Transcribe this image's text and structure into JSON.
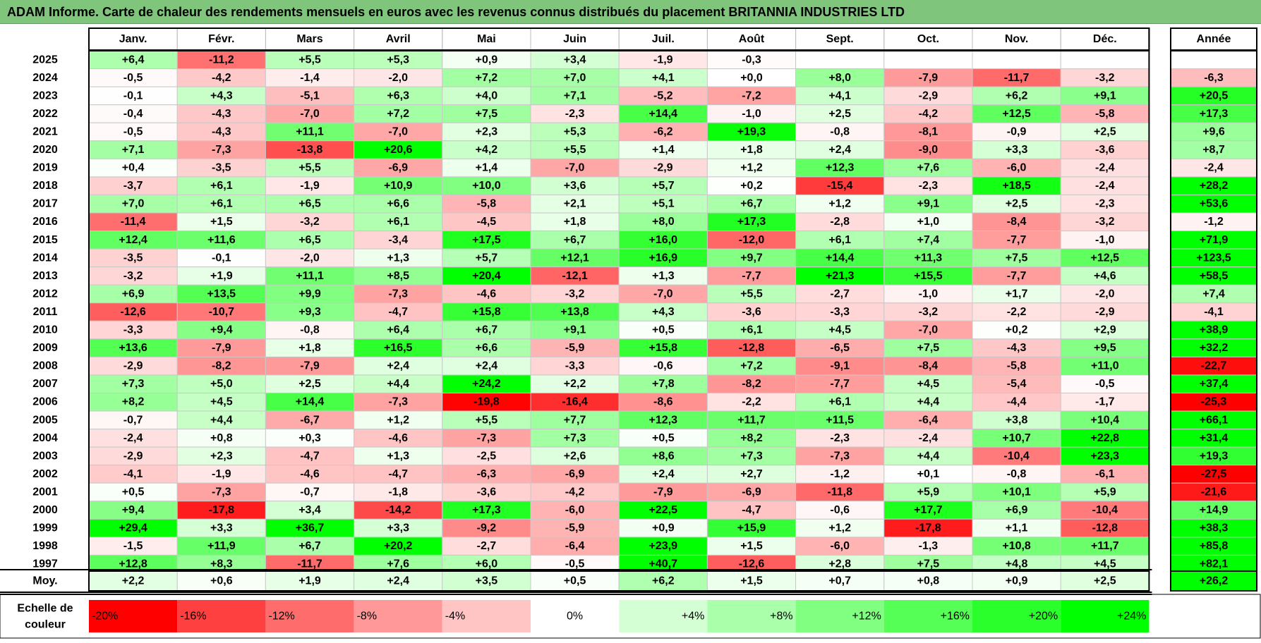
{
  "title": "ADAM Informe. Carte de chaleur des rendements mensuels en euros avec les revenus connus distribués du placement BRITANNIA INDUSTRIES LTD",
  "chart_data": {
    "type": "heatmap",
    "title": "ADAM Informe. Carte de chaleur des rendements mensuels en euros avec les revenus connus distribués du placement BRITANNIA INDUSTRIES LTD",
    "columns": [
      "Janv.",
      "Févr.",
      "Mars",
      "Avril",
      "Mai",
      "Juin",
      "Juil.",
      "Août",
      "Sept.",
      "Oct.",
      "Nov.",
      "Déc."
    ],
    "year_column_label": "Année",
    "rows": [
      {
        "year": "2025",
        "months": [
          "+6,4",
          "-11,2",
          "+5,5",
          "+5,3",
          "+0,9",
          "+3,4",
          "-1,9",
          "-0,3",
          "",
          "",
          "",
          ""
        ],
        "annual": ""
      },
      {
        "year": "2024",
        "months": [
          "-0,5",
          "-4,2",
          "-1,4",
          "-2,0",
          "+7,2",
          "+7,0",
          "+4,1",
          "+0,0",
          "+8,0",
          "-7,9",
          "-11,7",
          "-3,2"
        ],
        "annual": "-6,3"
      },
      {
        "year": "2023",
        "months": [
          "-0,1",
          "+4,3",
          "-5,1",
          "+6,3",
          "+4,0",
          "+7,1",
          "-5,2",
          "-7,2",
          "+4,1",
          "-2,9",
          "+6,2",
          "+9,1"
        ],
        "annual": "+20,5"
      },
      {
        "year": "2022",
        "months": [
          "-0,4",
          "-4,3",
          "-7,0",
          "+7,2",
          "+7,5",
          "-2,3",
          "+14,4",
          "-1,0",
          "+2,5",
          "-4,2",
          "+12,5",
          "-5,8"
        ],
        "annual": "+17,3"
      },
      {
        "year": "2021",
        "months": [
          "-0,5",
          "-4,3",
          "+11,1",
          "-7,0",
          "+2,3",
          "+5,3",
          "-6,2",
          "+19,3",
          "-0,8",
          "-8,1",
          "-0,9",
          "+2,5"
        ],
        "annual": "+9,6"
      },
      {
        "year": "2020",
        "months": [
          "+7,1",
          "-7,3",
          "-13,8",
          "+20,6",
          "+4,2",
          "+5,5",
          "+1,4",
          "+1,8",
          "+2,4",
          "-9,0",
          "+3,3",
          "-3,6"
        ],
        "annual": "+8,7"
      },
      {
        "year": "2019",
        "months": [
          "+0,4",
          "-3,5",
          "+5,5",
          "-6,9",
          "+1,4",
          "-7,0",
          "-2,9",
          "+1,2",
          "+12,3",
          "+7,6",
          "-6,0",
          "-2,4"
        ],
        "annual": "-2,4"
      },
      {
        "year": "2018",
        "months": [
          "-3,7",
          "+6,1",
          "-1,9",
          "+10,9",
          "+10,0",
          "+3,6",
          "+5,7",
          "+0,2",
          "-15,4",
          "-2,3",
          "+18,5",
          "-2,4"
        ],
        "annual": "+28,2"
      },
      {
        "year": "2017",
        "months": [
          "+7,0",
          "+6,1",
          "+6,5",
          "+6,6",
          "-5,8",
          "+2,1",
          "+5,1",
          "+6,7",
          "+1,2",
          "+9,1",
          "+2,5",
          "-2,3"
        ],
        "annual": "+53,6"
      },
      {
        "year": "2016",
        "months": [
          "-11,4",
          "+1,5",
          "-3,2",
          "+6,1",
          "-4,5",
          "+1,8",
          "+8,0",
          "+17,3",
          "-2,8",
          "+1,0",
          "-8,4",
          "-3,2"
        ],
        "annual": "-1,2"
      },
      {
        "year": "2015",
        "months": [
          "+12,4",
          "+11,6",
          "+6,5",
          "-3,4",
          "+17,5",
          "+6,7",
          "+16,0",
          "-12,0",
          "+6,1",
          "+7,4",
          "-7,7",
          "-1,0"
        ],
        "annual": "+71,9"
      },
      {
        "year": "2014",
        "months": [
          "-3,5",
          "-0,1",
          "-2,0",
          "+1,3",
          "+5,7",
          "+12,1",
          "+16,9",
          "+9,7",
          "+14,4",
          "+11,3",
          "+7,5",
          "+12,5"
        ],
        "annual": "+123,5"
      },
      {
        "year": "2013",
        "months": [
          "-3,2",
          "+1,9",
          "+11,1",
          "+8,5",
          "+20,4",
          "-12,1",
          "+1,3",
          "-7,7",
          "+21,3",
          "+15,5",
          "-7,7",
          "+4,6"
        ],
        "annual": "+58,5"
      },
      {
        "year": "2012",
        "months": [
          "+6,9",
          "+13,5",
          "+9,9",
          "-7,3",
          "-4,6",
          "-3,2",
          "-7,0",
          "+5,5",
          "-2,7",
          "-1,0",
          "+1,7",
          "-2,0"
        ],
        "annual": "+7,4"
      },
      {
        "year": "2011",
        "months": [
          "-12,6",
          "-10,7",
          "+9,3",
          "-4,7",
          "+15,8",
          "+13,8",
          "+4,3",
          "-3,6",
          "-3,3",
          "-3,2",
          "-2,2",
          "-2,9"
        ],
        "annual": "-4,1"
      },
      {
        "year": "2010",
        "months": [
          "-3,3",
          "+9,4",
          "-0,8",
          "+6,4",
          "+6,7",
          "+9,1",
          "+0,5",
          "+6,1",
          "+4,5",
          "-7,0",
          "+0,2",
          "+2,9"
        ],
        "annual": "+38,9"
      },
      {
        "year": "2009",
        "months": [
          "+13,6",
          "-7,9",
          "+1,8",
          "+16,5",
          "+6,6",
          "-5,9",
          "+15,8",
          "-12,8",
          "-6,5",
          "+7,5",
          "-4,3",
          "+9,5"
        ],
        "annual": "+32,2"
      },
      {
        "year": "2008",
        "months": [
          "-2,9",
          "-8,2",
          "-7,9",
          "+2,4",
          "+2,4",
          "-3,3",
          "-0,6",
          "+7,2",
          "-9,1",
          "-8,4",
          "-5,8",
          "+11,0"
        ],
        "annual": "-22,7"
      },
      {
        "year": "2007",
        "months": [
          "+7,3",
          "+5,0",
          "+2,5",
          "+4,4",
          "+24,2",
          "+2,2",
          "+7,8",
          "-8,2",
          "-7,7",
          "+4,5",
          "-5,4",
          "-0,5"
        ],
        "annual": "+37,4"
      },
      {
        "year": "2006",
        "months": [
          "+8,2",
          "+4,5",
          "+14,4",
          "-7,3",
          "-19,8",
          "-16,4",
          "-8,6",
          "-2,2",
          "+6,1",
          "+4,4",
          "-4,4",
          "-1,7"
        ],
        "annual": "-25,3"
      },
      {
        "year": "2005",
        "months": [
          "-0,7",
          "+4,4",
          "-6,7",
          "+1,2",
          "+5,5",
          "+7,7",
          "+12,3",
          "+11,7",
          "+11,5",
          "-6,4",
          "+3,8",
          "+10,4"
        ],
        "annual": "+66,1"
      },
      {
        "year": "2004",
        "months": [
          "-2,4",
          "+0,8",
          "+0,3",
          "-4,6",
          "-7,3",
          "+7,3",
          "+0,5",
          "+8,2",
          "-2,3",
          "-2,4",
          "+10,7",
          "+22,8"
        ],
        "annual": "+31,4"
      },
      {
        "year": "2003",
        "months": [
          "-2,9",
          "+2,3",
          "-4,7",
          "+1,3",
          "-2,5",
          "+2,6",
          "+8,6",
          "+7,3",
          "-7,3",
          "+4,4",
          "-10,4",
          "+23,3"
        ],
        "annual": "+19,3"
      },
      {
        "year": "2002",
        "months": [
          "-4,1",
          "-1,9",
          "-4,6",
          "-4,7",
          "-6,3",
          "-6,9",
          "+2,4",
          "+2,7",
          "-1,2",
          "+0,1",
          "-0,8",
          "-6,1"
        ],
        "annual": "-27,5"
      },
      {
        "year": "2001",
        "months": [
          "+0,5",
          "-7,3",
          "-0,7",
          "-1,8",
          "-3,6",
          "-4,2",
          "-7,9",
          "-6,9",
          "-11,8",
          "+5,9",
          "+10,1",
          "+5,9"
        ],
        "annual": "-21,6"
      },
      {
        "year": "2000",
        "months": [
          "+9,4",
          "-17,8",
          "+3,4",
          "-14,2",
          "+17,3",
          "-6,0",
          "+22,5",
          "-4,7",
          "-0,6",
          "+17,7",
          "+6,9",
          "-10,4"
        ],
        "annual": "+14,9"
      },
      {
        "year": "1999",
        "months": [
          "+29,4",
          "+3,3",
          "+36,7",
          "+3,3",
          "-9,2",
          "-5,9",
          "+0,9",
          "+15,9",
          "+1,2",
          "-17,8",
          "+1,1",
          "-12,8"
        ],
        "annual": "+38,3"
      },
      {
        "year": "1998",
        "months": [
          "-1,5",
          "+11,9",
          "+6,7",
          "+20,2",
          "-2,7",
          "-6,4",
          "+23,9",
          "+1,5",
          "-6,0",
          "-1,3",
          "+10,8",
          "+11,7"
        ],
        "annual": "+85,8"
      },
      {
        "year": "1997",
        "months": [
          "+12,8",
          "+8,3",
          "-11,7",
          "+7,6",
          "+6,0",
          "-0,5",
          "+40,7",
          "-12,6",
          "+2,8",
          "+7,5",
          "+4,8",
          "+4,5"
        ],
        "annual": "+82,1"
      }
    ],
    "average": {
      "label": "Moy.",
      "months": [
        "+2,2",
        "+0,6",
        "+1,9",
        "+2,4",
        "+3,5",
        "+0,5",
        "+6,2",
        "+1,5",
        "+0,7",
        "+0,8",
        "+0,9",
        "+2,5"
      ],
      "annual": "+26,2"
    },
    "scale": {
      "label_line1": "Echelle de",
      "label_line2": "couleur",
      "labels": [
        "-20%",
        "-16%",
        "-12%",
        "-8%",
        "-4%",
        "0%",
        "+4%",
        "+8%",
        "+12%",
        "+16%",
        "+20%",
        "+24%"
      ],
      "colors": [
        "#ff0000",
        "#ff4040",
        "#ff6c6c",
        "#ff9898",
        "#ffc4c4",
        "#ffffff",
        "#d4ffd4",
        "#aaffaa",
        "#80ff80",
        "#55ff55",
        "#2bff2b",
        "#00ff00"
      ]
    },
    "colors": {
      "negative_max": "#ff0000",
      "positive_max": "#00ff00",
      "neutral": "#ffffff",
      "title_bar": "#7fc57c"
    }
  }
}
